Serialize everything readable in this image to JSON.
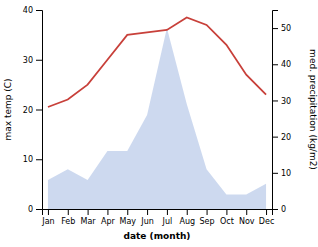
{
  "chart_data": {
    "type": "line",
    "categories": [
      "Jan",
      "Feb",
      "Mar",
      "Apr",
      "May",
      "Jun",
      "Jul",
      "Aug",
      "Sep",
      "Oct",
      "Nov",
      "Dec"
    ],
    "series": [
      {
        "type": "area",
        "axis": "y2",
        "color": "#b8c9e8",
        "values": [
          8,
          11,
          8,
          16,
          16,
          26,
          50,
          29,
          11,
          4,
          4,
          7
        ]
      },
      {
        "type": "line",
        "color": "#c8403a",
        "values": [
          20.5,
          22.0,
          25.0,
          30.0,
          35.0,
          35.5,
          36.0,
          38.5,
          37.0,
          33.0,
          27.0,
          23.0
        ]
      }
    ],
    "xlabel": "date (month)",
    "ylabel": "max temp (C)",
    "y2label": "med. precipitation (kg/m2)",
    "ylim": [
      0,
      40
    ],
    "yticks": [
      0,
      10,
      20,
      30,
      40
    ],
    "y2lim": [
      0,
      55
    ],
    "y2ticks": [
      0,
      10,
      20,
      30,
      40,
      50
    ],
    "grid": false
  }
}
